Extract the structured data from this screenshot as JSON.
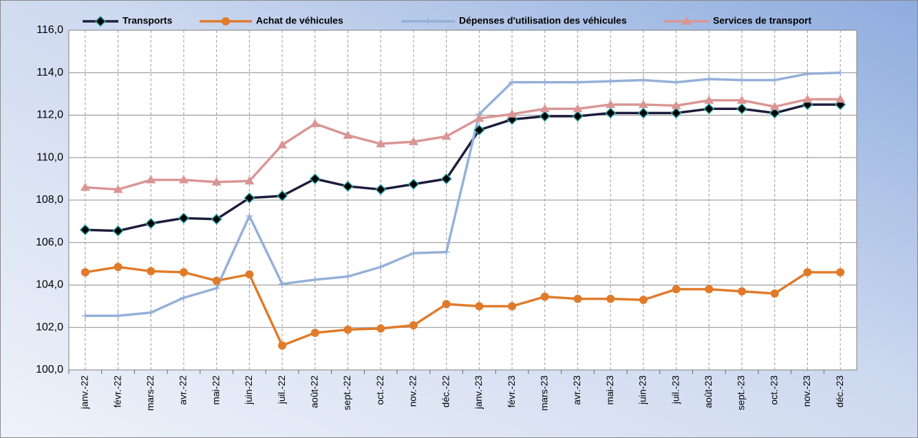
{
  "chart_data": {
    "type": "line",
    "categories": [
      "janv.-22",
      "févr.-22",
      "mars-22",
      "avr.-22",
      "mai-22",
      "juin-22",
      "juil.-22",
      "août-22",
      "sept.-22",
      "oct.-22",
      "nov.-22",
      "déc.-22",
      "janv.-23",
      "févr.-23",
      "mars-23",
      "avr.-23",
      "mai-23",
      "juin-23",
      "juil.-23",
      "août-23",
      "sept.-23",
      "oct.-23",
      "nov.-23",
      "déc.-23"
    ],
    "series": [
      {
        "name": "Transports",
        "color": "#1c1c3c",
        "values": [
          106.6,
          106.55,
          106.9,
          107.15,
          107.1,
          108.1,
          108.2,
          109.0,
          108.65,
          108.5,
          108.75,
          109.0,
          111.3,
          111.8,
          111.95,
          111.95,
          112.1,
          112.1,
          112.1,
          112.3,
          112.3,
          112.1,
          112.5,
          112.5
        ]
      },
      {
        "name": "Achat de véhicules",
        "color": "#e07b2a",
        "values": [
          104.6,
          104.85,
          104.65,
          104.6,
          104.2,
          104.5,
          101.15,
          101.75,
          101.9,
          101.95,
          102.1,
          103.1,
          103.0,
          103.0,
          103.45,
          103.35,
          103.35,
          103.3,
          103.8,
          103.8,
          103.7,
          103.6,
          104.6,
          104.6
        ]
      },
      {
        "name": "Dépenses d'utilisation des véhicules",
        "color": "#95b0d8",
        "values": [
          102.55,
          102.55,
          102.7,
          103.4,
          103.85,
          107.25,
          104.05,
          104.25,
          104.4,
          104.85,
          105.5,
          105.55,
          112.05,
          113.55,
          113.55,
          113.55,
          113.6,
          113.65,
          113.55,
          113.7,
          113.65,
          113.65,
          113.95,
          114.0
        ]
      },
      {
        "name": "Services de transport",
        "color": "#d99694",
        "values": [
          108.6,
          108.5,
          108.95,
          108.95,
          108.85,
          108.9,
          110.6,
          111.6,
          111.05,
          110.65,
          110.75,
          111.0,
          111.85,
          112.05,
          112.3,
          112.3,
          112.5,
          112.5,
          112.45,
          112.7,
          112.7,
          112.4,
          112.75,
          112.75
        ]
      }
    ],
    "ylim": [
      100,
      116
    ],
    "yticks": [
      {
        "value": 100,
        "label": "100,0"
      },
      {
        "value": 102,
        "label": "102,0"
      },
      {
        "value": 104,
        "label": "104,0"
      },
      {
        "value": 106,
        "label": "106,0"
      },
      {
        "value": 108,
        "label": "108,0"
      },
      {
        "value": 110,
        "label": "110,0"
      },
      {
        "value": 112,
        "label": "112,0"
      },
      {
        "value": 114,
        "label": "114,0"
      },
      {
        "value": 116,
        "label": "116,0"
      }
    ],
    "grid": true,
    "legend": "top"
  }
}
